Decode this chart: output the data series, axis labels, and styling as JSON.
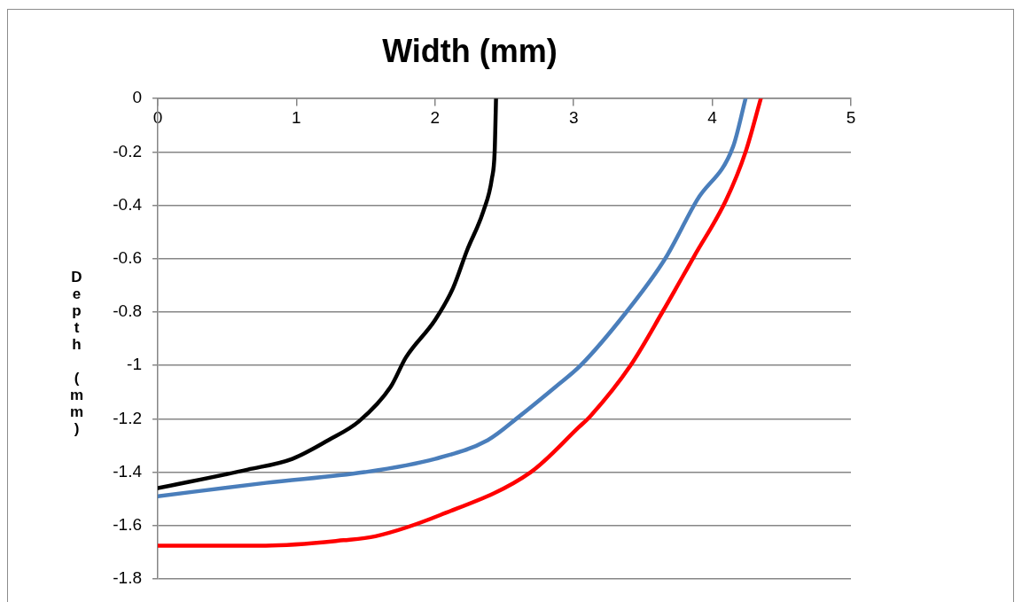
{
  "chart_data": {
    "type": "line",
    "title": "Width (mm)",
    "ylabel": "Depth (mm)",
    "xlim": [
      0,
      5
    ],
    "xticks": [
      0,
      1,
      2,
      3,
      4,
      5
    ],
    "ylim": [
      -1.8,
      0
    ],
    "yticks": [
      -1.8,
      -1.6,
      -1.4,
      -1.2,
      -1,
      -0.8,
      -0.6,
      -0.4,
      -0.2,
      0
    ],
    "grid": "y",
    "legend": false,
    "marker": "none",
    "line_style": "solid",
    "series": [
      {
        "color": "#000000",
        "x": [
          0,
          0.65,
          0.97,
          1.23,
          1.45,
          1.68,
          1.79,
          2.0,
          2.13,
          2.23,
          2.35,
          2.41,
          2.43,
          2.44
        ],
        "values": [
          -1.46,
          -1.39,
          -1.35,
          -1.28,
          -1.21,
          -1.08,
          -0.97,
          -0.83,
          -0.71,
          -0.57,
          -0.42,
          -0.3,
          -0.2,
          0
        ]
      },
      {
        "color": "#4a7ebb",
        "x": [
          0,
          0.78,
          1.49,
          2.0,
          2.38,
          2.61,
          2.87,
          3.05,
          3.38,
          3.66,
          3.89,
          4.15,
          4.24
        ],
        "values": [
          -1.49,
          -1.44,
          -1.4,
          -1.35,
          -1.28,
          -1.19,
          -1.08,
          -1.0,
          -0.8,
          -0.6,
          -0.38,
          -0.18,
          0
        ]
      },
      {
        "color": "#ff0000",
        "x": [
          0,
          0.78,
          1.34,
          1.57,
          2.04,
          2.69,
          3.04,
          3.12,
          3.41,
          3.64,
          3.87,
          4.1,
          4.24,
          4.35
        ],
        "values": [
          -1.675,
          -1.675,
          -1.655,
          -1.64,
          -1.56,
          -1.4,
          -1.23,
          -1.19,
          -1.0,
          -0.8,
          -0.59,
          -0.38,
          -0.2,
          0
        ]
      }
    ]
  }
}
